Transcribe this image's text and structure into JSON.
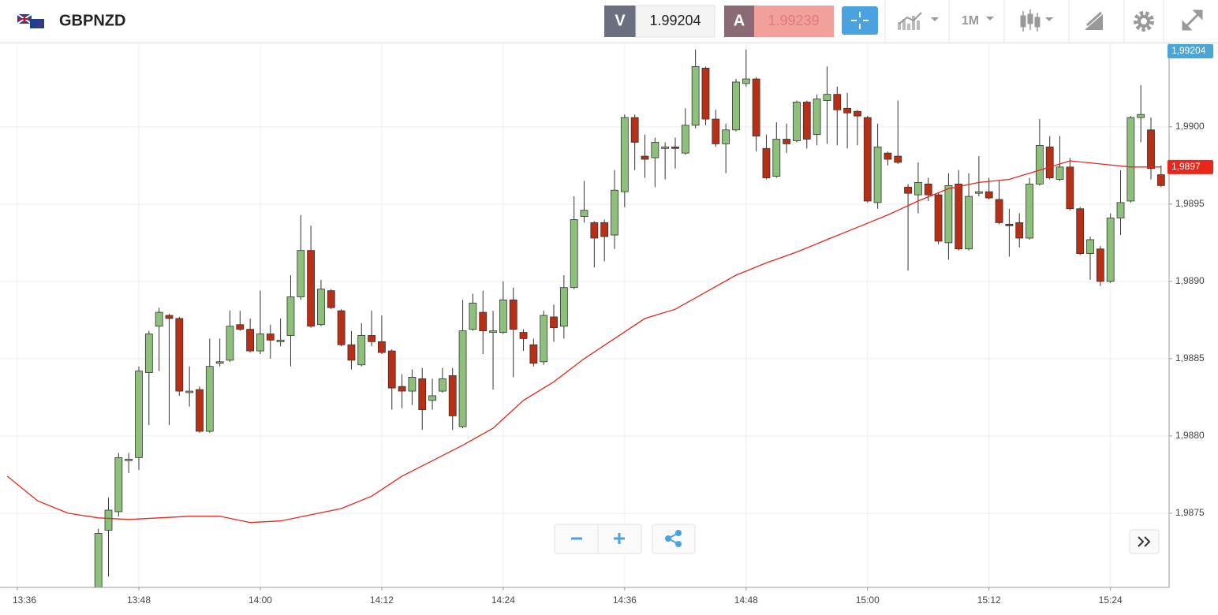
{
  "header": {
    "symbol": "GBPNZD",
    "bid_label": "V",
    "bid": 1.99204,
    "ask_label": "A",
    "ask": 1.99239,
    "timeframe": "1M"
  },
  "chart_data": {
    "type": "candlestick",
    "x": [
      "13:44",
      "13:45",
      "13:46",
      "13:47",
      "13:48",
      "13:49",
      "13:50",
      "13:51",
      "13:52",
      "13:53",
      "13:54",
      "13:55",
      "13:56",
      "13:57",
      "13:58",
      "13:59",
      "14:00",
      "14:01",
      "14:02",
      "14:03",
      "14:04",
      "14:05",
      "14:06",
      "14:07",
      "14:08",
      "14:09",
      "14:10",
      "14:11",
      "14:12",
      "14:13",
      "14:14",
      "14:15",
      "14:16",
      "14:17",
      "14:18",
      "14:19",
      "14:20",
      "14:21",
      "14:22",
      "14:23",
      "14:24",
      "14:25",
      "14:26",
      "14:27",
      "14:28",
      "14:29",
      "14:30",
      "14:31",
      "14:32",
      "14:33",
      "14:34",
      "14:35",
      "14:36",
      "14:37",
      "14:38",
      "14:39",
      "14:40",
      "14:41",
      "14:42",
      "14:43",
      "14:44",
      "14:45",
      "14:46",
      "14:47",
      "14:48",
      "14:49",
      "14:50",
      "14:51",
      "14:52",
      "14:53",
      "14:54",
      "14:55",
      "14:56",
      "14:57",
      "14:58",
      "14:59",
      "15:00",
      "15:01",
      "15:02",
      "15:03",
      "15:04",
      "15:05",
      "15:06",
      "15:07",
      "15:08",
      "15:09",
      "15:10",
      "15:11",
      "15:12",
      "15:13",
      "15:14",
      "15:15",
      "15:16",
      "15:17",
      "15:18",
      "15:19",
      "15:20",
      "15:21",
      "15:22",
      "15:23",
      "15:24",
      "15:25",
      "15:26",
      "15:27",
      "15:28",
      "15:29"
    ],
    "open": [
      1.987,
      1.98739,
      1.98751,
      1.98784,
      1.98786,
      1.98841,
      1.98871,
      1.98878,
      1.98876,
      1.98828,
      1.9883,
      1.98803,
      1.98847,
      1.98849,
      1.98872,
      1.98869,
      1.98855,
      1.98866,
      1.98861,
      1.98865,
      1.9889,
      1.9892,
      1.98872,
      1.98894,
      1.98881,
      1.98859,
      1.98846,
      1.98865,
      1.98861,
      1.98855,
      1.98832,
      1.98829,
      1.98837,
      1.98823,
      1.98829,
      1.98839,
      1.98806,
      1.98869,
      1.9888,
      1.98867,
      1.98867,
      1.98888,
      1.98867,
      1.98859,
      1.98848,
      1.98877,
      1.98871,
      1.98896,
      1.98942,
      1.98938,
      1.98938,
      1.9893,
      1.98958,
      1.99006,
      1.98981,
      1.9898,
      1.98986,
      1.98987,
      1.98983,
      1.99001,
      1.99038,
      1.99005,
      1.98989,
      1.98998,
      1.99028,
      1.99031,
      1.98986,
      1.98968,
      1.98992,
      1.98991,
      1.99016,
      1.98995,
      1.99017,
      1.99021,
      1.99012,
      1.9901,
      1.99006,
      1.98951,
      1.98983,
      1.98981,
      1.98961,
      1.98956,
      1.98963,
      1.98956,
      1.98925,
      1.98963,
      1.98921,
      1.98957,
      1.98958,
      1.98953,
      1.98937,
      1.98938,
      1.98928,
      1.98963,
      1.98987,
      1.98966,
      1.98974,
      1.98947,
      1.98918,
      1.98921,
      1.989,
      1.98941,
      1.98952,
      1.99006,
      1.98998,
      1.98969
    ],
    "high": [
      1.9874,
      1.9876,
      1.98789,
      1.98789,
      1.98845,
      1.98868,
      1.98883,
      1.98879,
      1.98877,
      1.98845,
      1.98832,
      1.98863,
      1.98863,
      1.98881,
      1.98881,
      1.98876,
      1.98894,
      1.98872,
      1.98876,
      1.98904,
      1.98943,
      1.98936,
      1.98901,
      1.98895,
      1.98882,
      1.98868,
      1.98873,
      1.98881,
      1.98878,
      1.98856,
      1.9884,
      1.98843,
      1.98844,
      1.98837,
      1.98844,
      1.98844,
      1.98888,
      1.98892,
      1.98894,
      1.98881,
      1.989,
      1.98896,
      1.98869,
      1.98863,
      1.98881,
      1.98885,
      1.98904,
      1.98955,
      1.98965,
      1.98939,
      1.9894,
      1.98972,
      1.99008,
      1.99008,
      1.98995,
      1.98993,
      1.9899,
      1.98993,
      1.99012,
      1.9905,
      1.99039,
      1.99011,
      1.99002,
      1.99031,
      1.9905,
      1.99032,
      1.98995,
      1.99003,
      1.99002,
      1.99017,
      1.99017,
      1.99021,
      1.99039,
      1.99026,
      1.99022,
      1.99011,
      1.99007,
      1.99002,
      1.98984,
      1.99017,
      1.98963,
      1.98977,
      1.98967,
      1.98957,
      1.9897,
      1.98972,
      1.9897,
      1.98981,
      1.98967,
      1.98965,
      1.98947,
      1.98944,
      1.98967,
      1.99005,
      1.98994,
      1.98994,
      1.9898,
      1.98948,
      1.98929,
      1.98923,
      1.98944,
      1.98972,
      1.99007,
      1.99027,
      1.99006,
      1.98975
    ],
    "low": [
      1.98695,
      1.98709,
      1.98748,
      1.98776,
      1.98778,
      1.98807,
      1.98842,
      1.98807,
      1.98826,
      1.98819,
      1.98802,
      1.98802,
      1.98845,
      1.98848,
      1.98868,
      1.98854,
      1.98853,
      1.9885,
      1.98858,
      1.98845,
      1.98888,
      1.9887,
      1.98871,
      1.98882,
      1.98858,
      1.98843,
      1.98845,
      1.98858,
      1.98853,
      1.98817,
      1.98818,
      1.9882,
      1.98804,
      1.98817,
      1.98828,
      1.98804,
      1.98805,
      1.98868,
      1.98853,
      1.9883,
      1.98866,
      1.98838,
      1.98855,
      1.98845,
      1.98846,
      1.98861,
      1.98863,
      1.98895,
      1.98938,
      1.98909,
      1.98913,
      1.98921,
      1.98948,
      1.98972,
      1.98967,
      1.98961,
      1.98966,
      1.98973,
      1.98982,
      1.98999,
      1.99001,
      1.98987,
      1.9897,
      1.98997,
      1.99026,
      1.98984,
      1.98966,
      1.98967,
      1.98983,
      1.9899,
      1.98986,
      1.98988,
      1.98989,
      1.98988,
      1.98986,
      1.98988,
      1.98951,
      1.98947,
      1.98975,
      1.98976,
      1.98907,
      1.98944,
      1.98952,
      1.98924,
      1.98914,
      1.9892,
      1.9892,
      1.98955,
      1.98953,
      1.98937,
      1.98916,
      1.98922,
      1.98927,
      1.98962,
      1.98966,
      1.98965,
      1.98946,
      1.98917,
      1.98901,
      1.98897,
      1.98899,
      1.9893,
      1.98951,
      1.9899,
      1.98966,
      1.98961
    ],
    "close": [
      1.98737,
      1.98752,
      1.98786,
      1.98785,
      1.98842,
      1.98866,
      1.9888,
      1.98876,
      1.98829,
      1.98829,
      1.98803,
      1.98845,
      1.98848,
      1.98871,
      1.98869,
      1.98855,
      1.98866,
      1.98862,
      1.98862,
      1.9889,
      1.9892,
      1.98871,
      1.98895,
      1.98883,
      1.98859,
      1.98849,
      1.98865,
      1.98861,
      1.98854,
      1.98831,
      1.98829,
      1.98838,
      1.98817,
      1.98826,
      1.98837,
      1.98813,
      1.98868,
      1.98886,
      1.98868,
      1.98868,
      1.98888,
      1.98869,
      1.98863,
      1.98847,
      1.98878,
      1.9887,
      1.98896,
      1.9894,
      1.98946,
      1.98928,
      1.98929,
      1.98959,
      1.99006,
      1.9899,
      1.98979,
      1.9899,
      1.98987,
      1.98986,
      1.99001,
      1.99039,
      1.99005,
      1.98989,
      1.98998,
      1.99029,
      1.99031,
      1.98994,
      1.98967,
      1.98992,
      1.98989,
      1.99016,
      1.98992,
      1.99018,
      1.99021,
      1.99011,
      1.99009,
      1.99007,
      1.98952,
      1.98987,
      1.98979,
      1.98977,
      1.98957,
      1.98964,
      1.98956,
      1.98926,
      1.98962,
      1.98921,
      1.98955,
      1.98958,
      1.98954,
      1.98938,
      1.98936,
      1.98928,
      1.98963,
      1.98988,
      1.98967,
      1.98974,
      1.98947,
      1.98918,
      1.98927,
      1.989,
      1.98941,
      1.98951,
      1.99006,
      1.99008,
      1.98973,
      1.98962
    ],
    "up_color": "#8dc07a",
    "down_color": "#b82f16",
    "moving_average": {
      "color": "#e8261c",
      "x": [
        "13:35",
        "13:38",
        "13:41",
        "13:44",
        "13:47",
        "13:50",
        "13:53",
        "13:56",
        "13:59",
        "14:02",
        "14:05",
        "14:08",
        "14:11",
        "14:14",
        "14:17",
        "14:20",
        "14:23",
        "14:26",
        "14:29",
        "14:32",
        "14:35",
        "14:38",
        "14:41",
        "14:44",
        "14:47",
        "14:50",
        "14:53",
        "14:56",
        "14:59",
        "15:02",
        "15:05",
        "15:08",
        "15:11",
        "15:14",
        "15:17",
        "15:20",
        "15:23",
        "15:26",
        "15:29"
      ],
      "values": [
        1.98774,
        1.98758,
        1.9875,
        1.98747,
        1.98746,
        1.98747,
        1.98748,
        1.98748,
        1.98744,
        1.98745,
        1.98749,
        1.98753,
        1.98761,
        1.98774,
        1.98784,
        1.98794,
        1.98805,
        1.98823,
        1.98835,
        1.9885,
        1.98863,
        1.98876,
        1.98882,
        1.98893,
        1.98904,
        1.98912,
        1.98919,
        1.98927,
        1.98935,
        1.98943,
        1.98952,
        1.9896,
        1.98964,
        1.98966,
        1.98972,
        1.98978,
        1.98976,
        1.98974,
        1.98974
      ]
    },
    "last_price": {
      "value": 1.99204,
      "label": "1,99204"
    },
    "ma_price": {
      "value": 1.98974,
      "label": "1,9897"
    },
    "ylim": [
      1.98702,
      1.99054
    ],
    "yticks": [
      {
        "value": 1.9875,
        "label": "1,9875"
      },
      {
        "value": 1.988,
        "label": "1,9880"
      },
      {
        "value": 1.9885,
        "label": "1,9885"
      },
      {
        "value": 1.989,
        "label": "1,9890"
      },
      {
        "value": 1.9895,
        "label": "1,9895"
      },
      {
        "value": 1.99,
        "label": "1,9900"
      }
    ],
    "xticks": [
      "13:36",
      "13:48",
      "14:00",
      "14:12",
      "14:24",
      "14:36",
      "14:48",
      "15:00",
      "15:12",
      "15:24"
    ],
    "grid": true
  }
}
